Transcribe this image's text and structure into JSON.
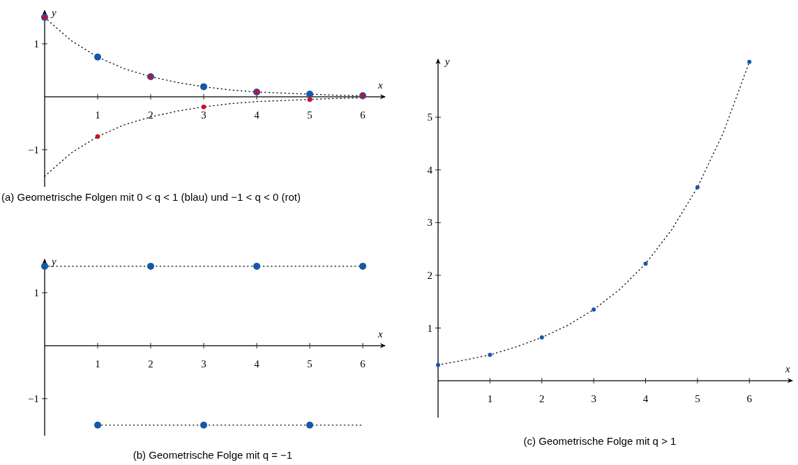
{
  "chart_data": [
    {
      "type": "scatter",
      "title": "(a) Geometrische Folgen mit 0 < q < 1 (blau) und −1 < q < 0 (rot)",
      "xlabel": "x",
      "ylabel": "y",
      "xlim": [
        0,
        6.42
      ],
      "ylim": [
        -1.7,
        1.63
      ],
      "xticks": [
        1,
        2,
        3,
        4,
        5,
        6
      ],
      "yticks": [
        -1,
        1
      ],
      "marker": "circle",
      "line_style": "dotted",
      "grid": false,
      "series": [
        {
          "type": "line",
          "marker": "none",
          "color": "#000000",
          "x": [
            0,
            0.5,
            1,
            1.5,
            2,
            2.5,
            3,
            3.5,
            4,
            4.5,
            5,
            5.5,
            6
          ],
          "values": [
            1.5,
            1.06,
            0.75,
            0.53,
            0.38,
            0.27,
            0.19,
            0.13,
            0.09,
            0.07,
            0.05,
            0.03,
            0.02
          ]
        },
        {
          "type": "line",
          "marker": "none",
          "color": "#000000",
          "x": [
            0,
            0.5,
            1,
            1.5,
            2,
            2.5,
            3,
            3.5,
            4,
            4.5,
            5,
            5.5,
            6
          ],
          "values": [
            -1.5,
            -1.06,
            -0.75,
            -0.53,
            -0.38,
            -0.27,
            -0.19,
            -0.13,
            -0.09,
            -0.07,
            -0.05,
            -0.03,
            -0.02
          ]
        },
        {
          "type": "scatter",
          "color": "#1558a8",
          "x": [
            0,
            1,
            2,
            3,
            4,
            5,
            6
          ],
          "values": [
            1.5,
            0.75,
            0.38,
            0.19,
            0.09,
            0.05,
            0.02
          ]
        },
        {
          "type": "scatter",
          "color": "#c8102e",
          "x": [
            0,
            1,
            2,
            3,
            4,
            5,
            6
          ],
          "values": [
            1.5,
            -0.75,
            0.38,
            -0.19,
            0.09,
            -0.05,
            0.02
          ]
        }
      ]
    },
    {
      "type": "scatter",
      "title": "(b) Geometrische Folge mit q = −1",
      "xlabel": "x",
      "ylabel": "y",
      "xlim": [
        0,
        6.42
      ],
      "ylim": [
        -1.7,
        1.63
      ],
      "xticks": [
        1,
        2,
        3,
        4,
        5,
        6
      ],
      "yticks": [
        -1,
        1
      ],
      "marker": "circle",
      "line_style": "dotted",
      "grid": false,
      "series": [
        {
          "type": "line",
          "marker": "none",
          "color": "#000000",
          "x": [
            0,
            6
          ],
          "values": [
            1.5,
            1.5
          ]
        },
        {
          "type": "line",
          "marker": "none",
          "color": "#000000",
          "x": [
            1,
            6
          ],
          "values": [
            -1.5,
            -1.5
          ]
        },
        {
          "type": "scatter",
          "color": "#1558a8",
          "x": [
            0,
            1,
            2,
            3,
            4,
            5,
            6
          ],
          "values": [
            1.5,
            -1.5,
            1.5,
            -1.5,
            1.5,
            -1.5,
            1.5
          ]
        }
      ]
    },
    {
      "type": "scatter",
      "title": "(c) Geometrische Folge mit q > 1",
      "xlabel": "x",
      "ylabel": "y",
      "xlim": [
        0,
        6.83
      ],
      "ylim": [
        -0.7,
        6.1
      ],
      "xticks": [
        1,
        2,
        3,
        4,
        5,
        6
      ],
      "yticks": [
        1,
        2,
        3,
        4,
        5
      ],
      "marker": "circle",
      "line_style": "dotted",
      "grid": false,
      "series": [
        {
          "type": "line",
          "marker": "none",
          "color": "#000000",
          "x": [
            0,
            0.5,
            1,
            1.5,
            2,
            2.5,
            3,
            3.5,
            4,
            4.5,
            5,
            5.5,
            6
          ],
          "values": [
            0.3,
            0.39,
            0.49,
            0.64,
            0.82,
            1.05,
            1.35,
            1.73,
            2.22,
            2.86,
            3.67,
            4.71,
            6.05
          ]
        },
        {
          "type": "scatter",
          "color": "#1558a8",
          "x": [
            0,
            1,
            2,
            3,
            4,
            5,
            6
          ],
          "values": [
            0.3,
            0.49,
            0.82,
            1.35,
            2.22,
            3.67,
            6.05
          ]
        }
      ]
    }
  ]
}
